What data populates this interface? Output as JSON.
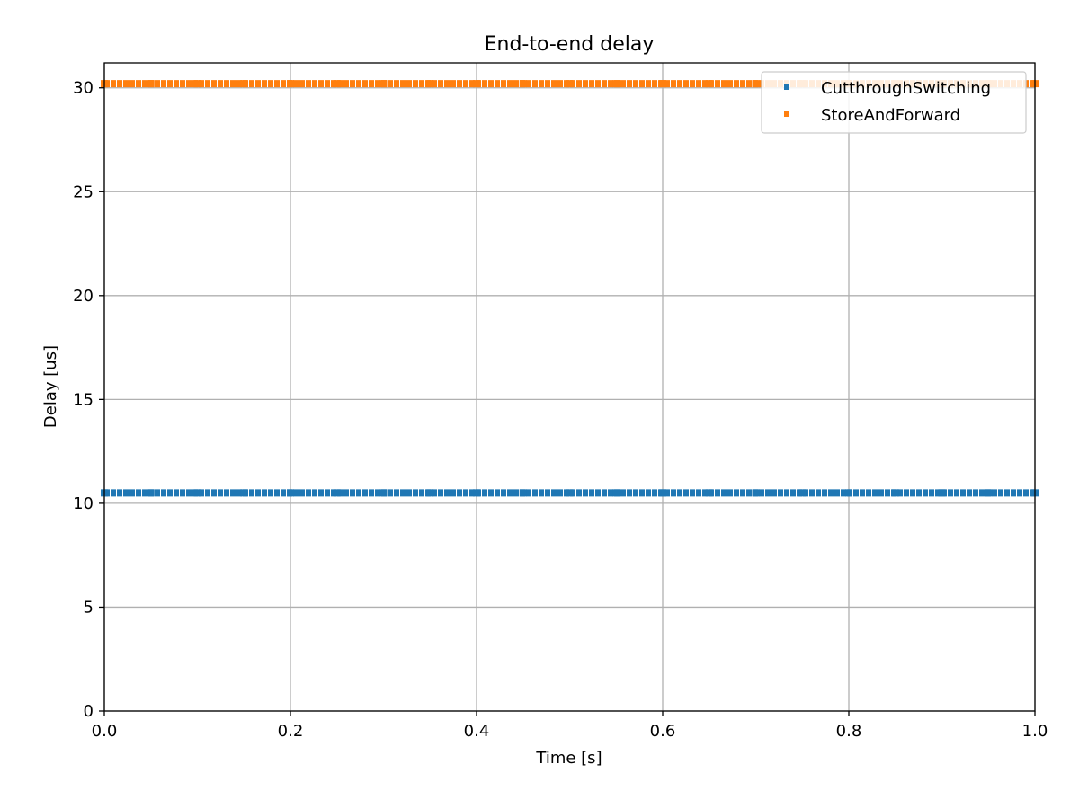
{
  "chart_data": {
    "type": "scatter",
    "title": "End-to-end delay",
    "xlabel": "Time [s]",
    "ylabel": "Delay [us]",
    "xlim": [
      0.0,
      1.0
    ],
    "ylim": [
      0,
      31.2
    ],
    "x_ticks": [
      "0.0",
      "0.2",
      "0.4",
      "0.6",
      "0.8",
      "1.0"
    ],
    "y_ticks": [
      "0",
      "5",
      "10",
      "15",
      "20",
      "25",
      "30"
    ],
    "grid": true,
    "legend_position": "top-right",
    "series": [
      {
        "name": "CutthroughSwitching",
        "color": "#1f77b4",
        "x": [
          0.0,
          0.05,
          0.1,
          0.15,
          0.2,
          0.25,
          0.3,
          0.35,
          0.4,
          0.45,
          0.5,
          0.55,
          0.6,
          0.65,
          0.7,
          0.75,
          0.8,
          0.85,
          0.9,
          0.95,
          1.0
        ],
        "y": [
          10.5,
          10.5,
          10.5,
          10.5,
          10.5,
          10.5,
          10.5,
          10.5,
          10.5,
          10.5,
          10.5,
          10.5,
          10.5,
          10.5,
          10.5,
          10.5,
          10.5,
          10.5,
          10.5,
          10.5,
          10.5
        ]
      },
      {
        "name": "StoreAndForward",
        "color": "#ff7f0e",
        "x": [
          0.0,
          0.05,
          0.1,
          0.15,
          0.2,
          0.25,
          0.3,
          0.35,
          0.4,
          0.45,
          0.5,
          0.55,
          0.6,
          0.65,
          0.7,
          0.75,
          0.8,
          0.85,
          0.9,
          0.95,
          1.0
        ],
        "y": [
          30.2,
          30.2,
          30.2,
          30.2,
          30.2,
          30.2,
          30.2,
          30.2,
          30.2,
          30.2,
          30.2,
          30.2,
          30.2,
          30.2,
          30.2,
          30.2,
          30.2,
          30.2,
          30.2,
          30.2,
          30.2
        ]
      }
    ]
  }
}
